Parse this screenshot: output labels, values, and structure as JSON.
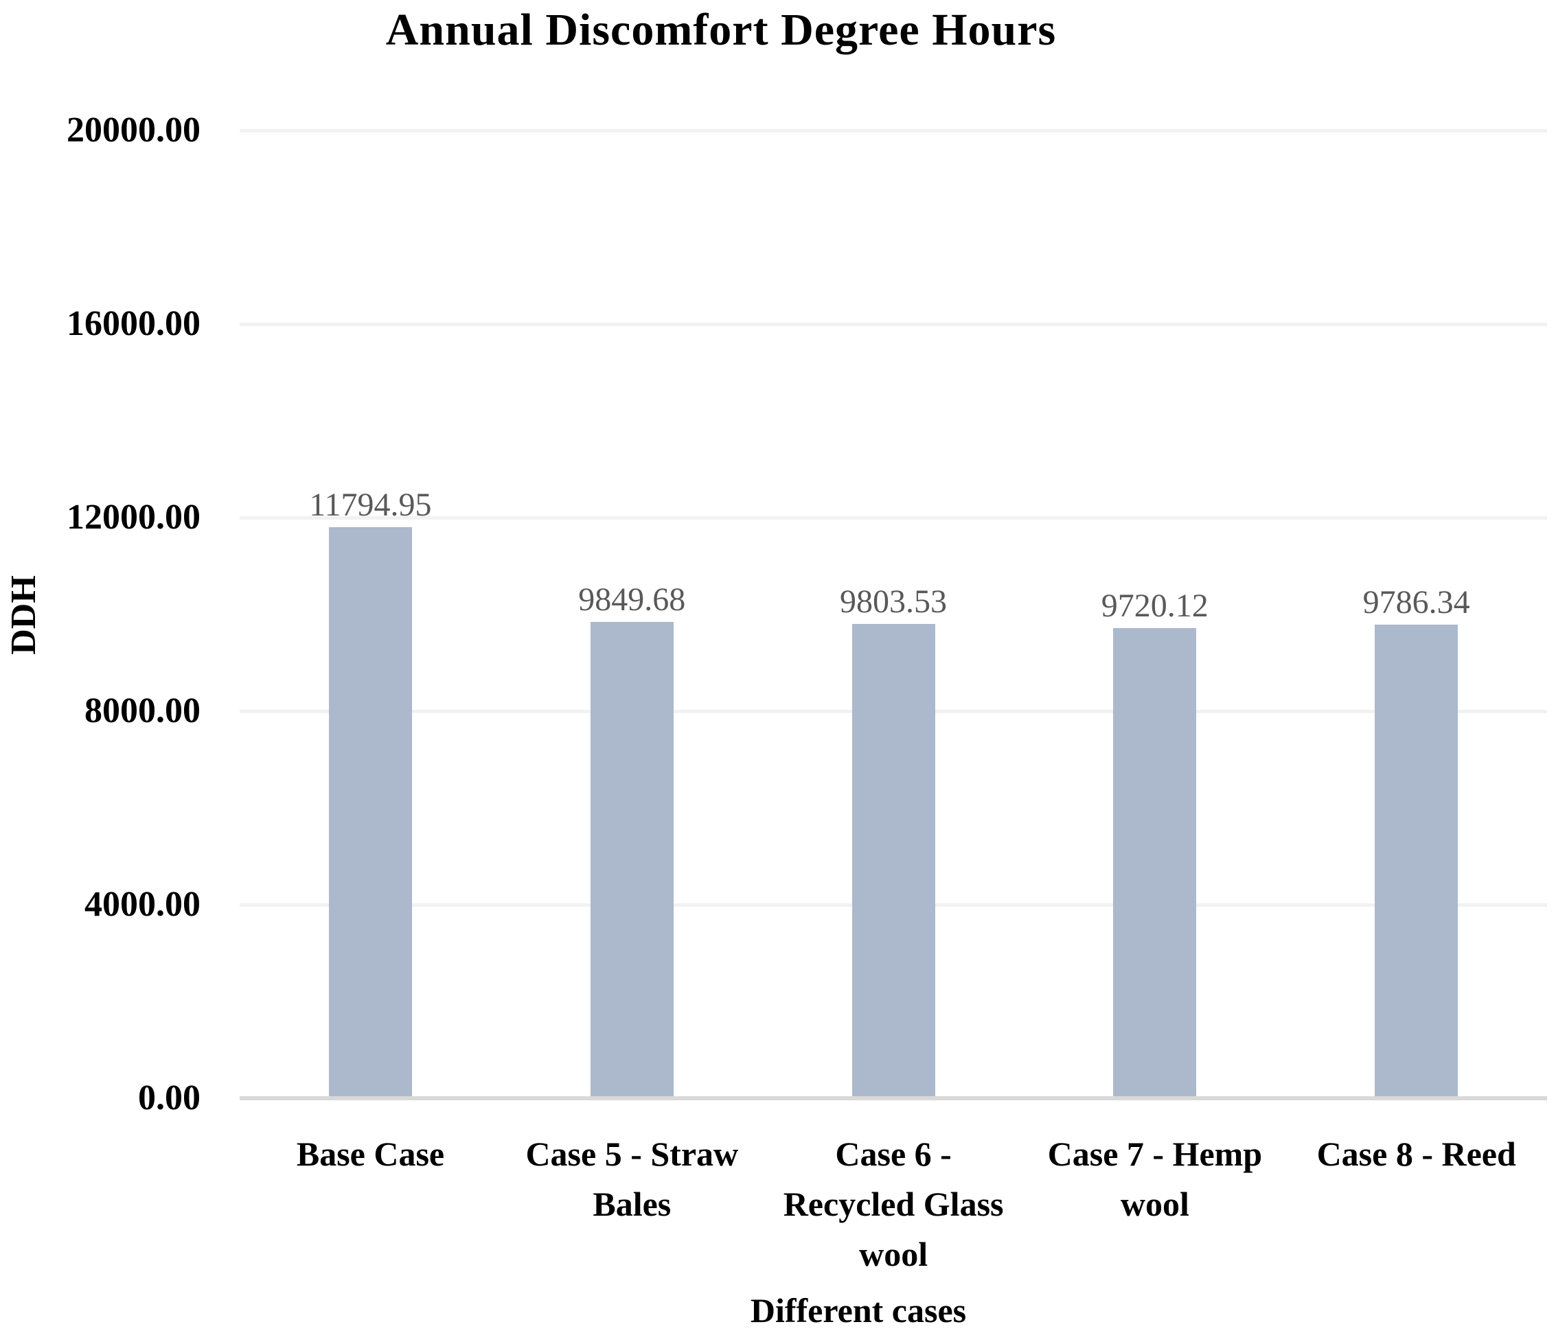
{
  "chart_data": {
    "type": "bar",
    "title": "Annual Discomfort Degree Hours",
    "xlabel": "Different cases",
    "ylabel": "DDH",
    "categories": [
      "Base Case",
      "Case 5 - Straw Bales",
      "Case 6 - Recycled Glass wool",
      "Case 7 - Hemp wool",
      "Case 8 - Reed"
    ],
    "categories_display": [
      "Base Case",
      "Case 5 - Straw\nBales",
      "Case 6 -\nRecycled Glass\nwool",
      "Case 7 - Hemp\nwool",
      "Case 8 - Reed"
    ],
    "values": [
      11794.95,
      9849.68,
      9803.53,
      9720.12,
      9786.34
    ],
    "value_labels": [
      "11794.95",
      "9849.68",
      "9803.53",
      "9720.12",
      "9786.34"
    ],
    "ylim": [
      0,
      20000
    ],
    "ytick_step": 4000,
    "ytick_labels": [
      "0.00",
      "4000.00",
      "8000.00",
      "12000.00",
      "16000.00",
      "20000.00"
    ],
    "grid": true,
    "legend": "none",
    "bar_color": "#acb8cb",
    "value_label_color": "#595959",
    "gridline_color": "#f2f2f2",
    "axis_line_color": "#d9d9d9",
    "text_color": "#000000"
  }
}
